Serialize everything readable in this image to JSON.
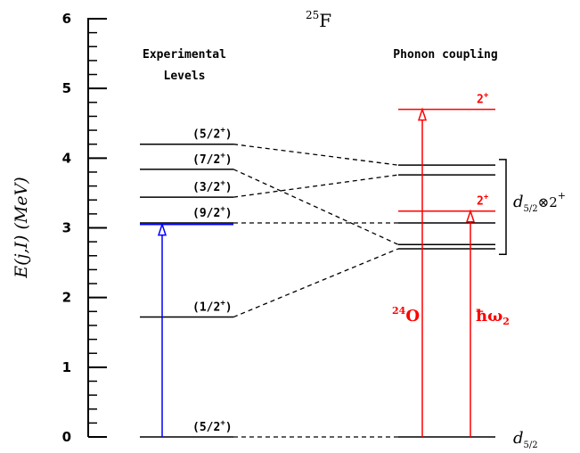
{
  "title": {
    "mass": "25",
    "element": "F"
  },
  "y_axis": {
    "label": "E(j,I) (MeV)",
    "min": 0,
    "max": 6,
    "ticks": [
      "0",
      "1",
      "2",
      "3",
      "4",
      "5",
      "6"
    ]
  },
  "headers": {
    "experimental_line1": "Experimental",
    "experimental_line2": "Levels",
    "phonon": "Phonon coupling"
  },
  "experimental_levels": [
    {
      "energy": 0.0,
      "label": "(5/2+)",
      "spin": "(5/2",
      "parity": "+",
      "close": ")"
    },
    {
      "energy": 1.72,
      "label": "(1/2+)",
      "spin": "(1/2",
      "parity": "+",
      "close": ")"
    },
    {
      "energy": 3.07,
      "label": "(9/2+)",
      "spin": "(9/2",
      "parity": "+",
      "close": ")"
    },
    {
      "energy": 3.44,
      "label": "(3/2+)",
      "spin": "(3/2",
      "parity": "+",
      "close": ")"
    },
    {
      "energy": 3.84,
      "label": "(7/2+)",
      "spin": "(7/2",
      "parity": "+",
      "close": ")"
    },
    {
      "energy": 4.2,
      "label": "(5/2+)",
      "spin": "(5/2",
      "parity": "+",
      "close": ")"
    }
  ],
  "blue_level_energy": 3.05,
  "multiplet_levels": [
    2.7,
    2.76,
    3.07,
    3.76,
    3.9
  ],
  "phonon_levels": [
    {
      "energy": 4.7,
      "label": "2+",
      "base": "2",
      "sup": "+"
    },
    {
      "energy": 3.24,
      "label": "2+",
      "base": "2",
      "sup": "+"
    }
  ],
  "connections": [
    {
      "from": 0.0,
      "to": 0.0
    },
    {
      "from": 1.72,
      "to": 2.7
    },
    {
      "from": 3.07,
      "to": 3.07
    },
    {
      "from": 3.44,
      "to": 3.76
    },
    {
      "from": 3.84,
      "to": 2.76
    },
    {
      "from": 4.2,
      "to": 3.9
    }
  ],
  "annotations": {
    "oxygen_mass": "24",
    "oxygen_symbol": "O",
    "hbar_omega": "ħω",
    "hbar_omega_sub": "2",
    "ground_d": "d",
    "ground_sub": "5/2",
    "multiplet_d": "d",
    "multiplet_sub": "5/2",
    "multiplet_tensor": "⊗2",
    "multiplet_sup": "+"
  },
  "colors": {
    "axis": "#000000",
    "level": "#000000",
    "phonon": "#ff0000",
    "experimental_arrow": "#0000ff"
  }
}
